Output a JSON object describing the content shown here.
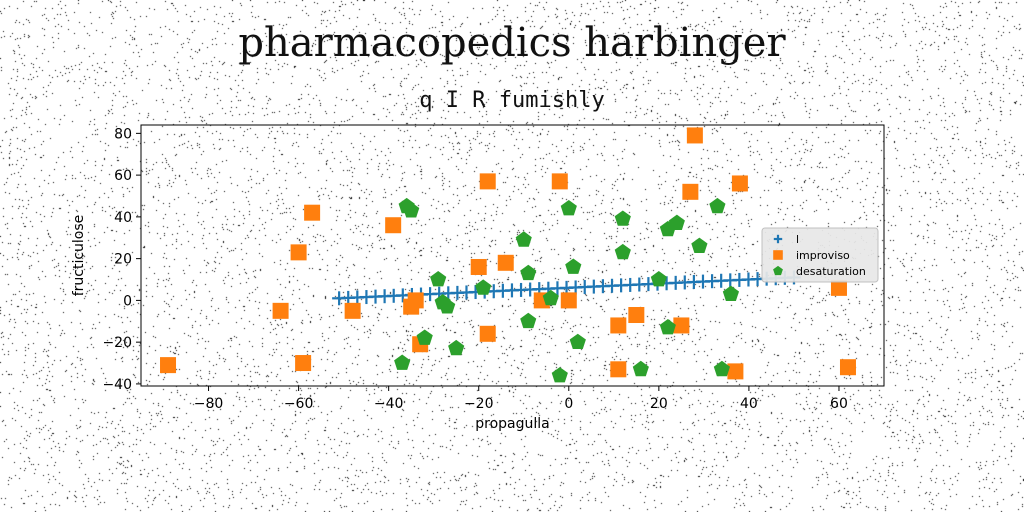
{
  "chart_data": {
    "type": "scatter",
    "title": "pharmacopedics harbinger",
    "subtitle": "q I R fumishly",
    "xlabel": "propagulla",
    "ylabel": "fructiculose",
    "xlim": [
      -95,
      70
    ],
    "ylim": [
      -41,
      84
    ],
    "xticks": [
      -80,
      -60,
      -40,
      -20,
      0,
      20,
      40,
      60
    ],
    "yticks": [
      -40,
      -20,
      0,
      20,
      40,
      60,
      80
    ],
    "grid": false,
    "legend_position": "center-right",
    "series": [
      {
        "name": "l",
        "marker": "plus",
        "color": "#1f77b4",
        "line_start": [
          -51,
          1.0
        ],
        "line_end": [
          50,
          11.0
        ],
        "n_points": 51
      },
      {
        "name": "improviso",
        "marker": "square",
        "color": "#ff7f0e",
        "x": [
          -89,
          -64,
          -60,
          -59,
          -57,
          -48,
          -39,
          -35,
          -34,
          -33,
          -20,
          -18,
          -18,
          -14,
          -6,
          -2,
          0,
          11,
          11,
          15,
          25,
          27,
          28,
          37,
          38,
          60,
          62
        ],
        "y": [
          -31,
          -5,
          23,
          -30,
          42,
          -5,
          36,
          -3,
          0,
          -21,
          16,
          -16,
          57,
          18,
          0,
          57,
          0,
          -12,
          -33,
          -7,
          -12,
          52,
          79,
          -34,
          56,
          6,
          -32
        ]
      },
      {
        "name": "desaturation",
        "marker": "pentagon",
        "color": "#2ca02c",
        "x": [
          -37,
          -36,
          -35,
          -32,
          -29,
          -28,
          -27,
          -25,
          -19,
          -10,
          -9,
          -9,
          -4,
          -2,
          0,
          1,
          2,
          12,
          12,
          16,
          20,
          22,
          22,
          24,
          29,
          33,
          34,
          36
        ],
        "y": [
          -30,
          45,
          43,
          -18,
          10,
          -1,
          -3,
          -23,
          6,
          29,
          13,
          -10,
          1,
          -36,
          44,
          16,
          -20,
          23,
          39,
          -33,
          10,
          -13,
          34,
          37,
          26,
          45,
          -33,
          3
        ]
      }
    ],
    "colors": {
      "axis": "#000000",
      "legend_bg": "#e8e8e8"
    }
  }
}
